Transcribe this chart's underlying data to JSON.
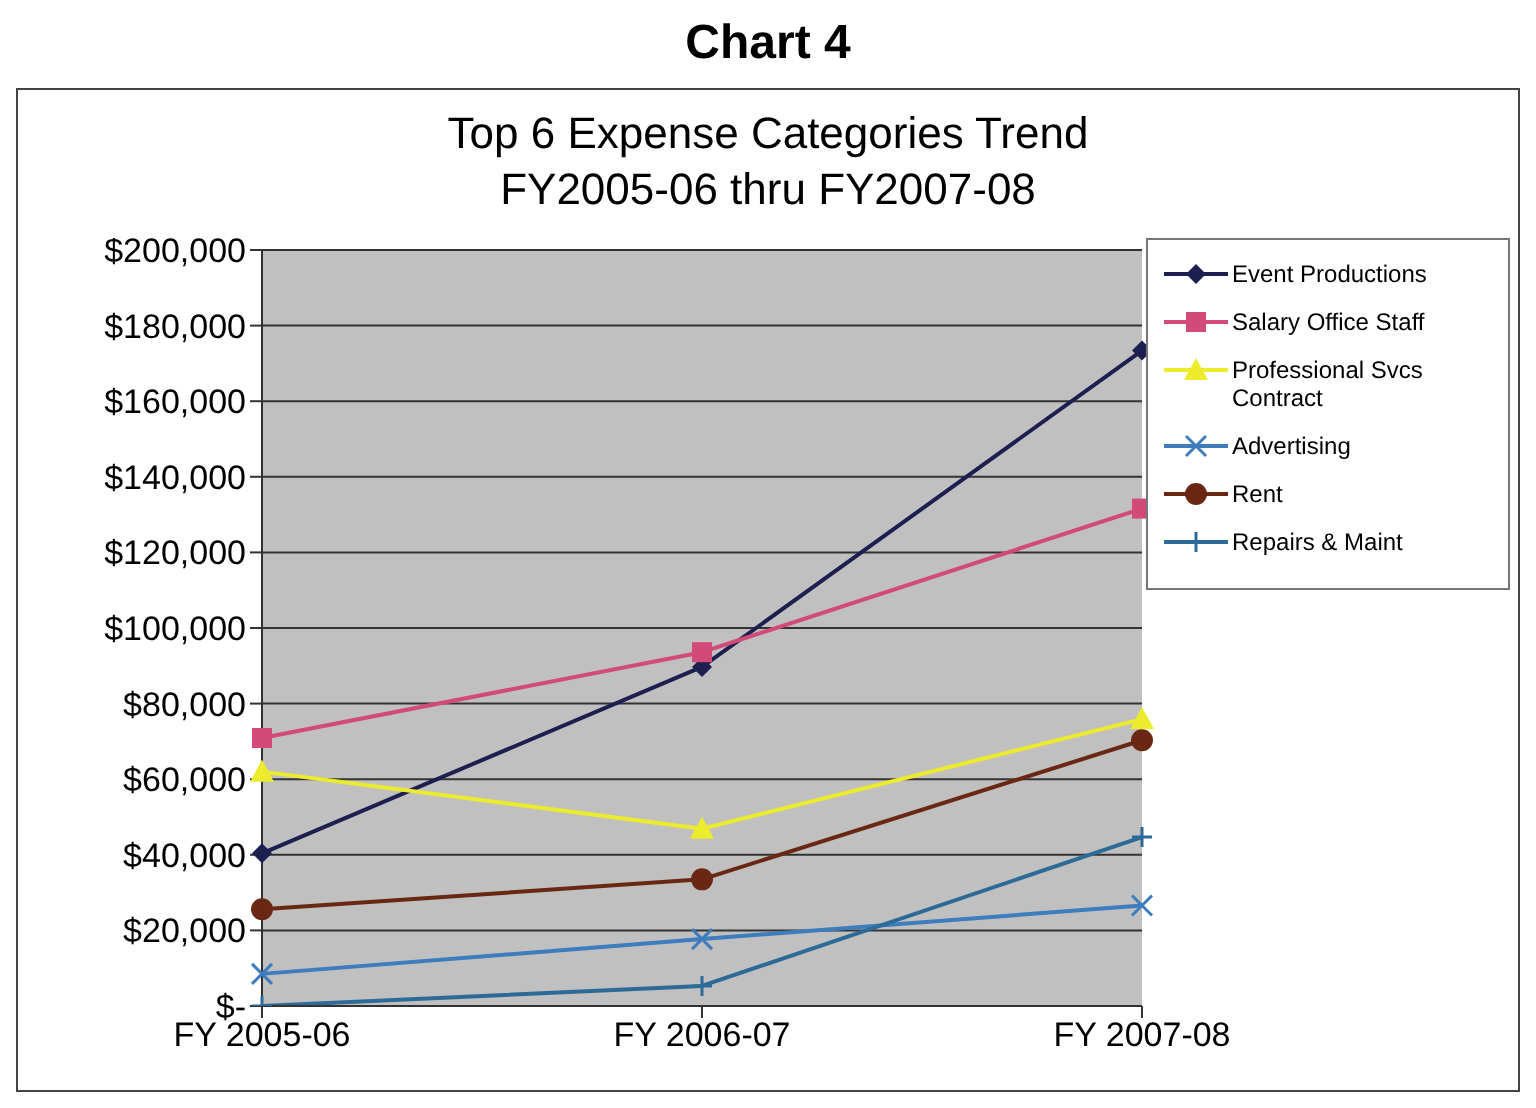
{
  "chart_data": {
    "type": "line",
    "title": "Chart 4",
    "subtitle": "Top 6 Expense Categories Trend\nFY2005-06 thru FY2007-08",
    "categories": [
      "FY 2005-06",
      "FY 2006-07",
      "FY 2007-08"
    ],
    "series": [
      {
        "name": "Event Productions",
        "color": "#1c1f4f",
        "marker": "diamond",
        "values": [
          40400,
          89700,
          173400
        ]
      },
      {
        "name": "Salary Office Staff",
        "color": "#d24a78",
        "marker": "square",
        "values": [
          70900,
          93600,
          131600
        ]
      },
      {
        "name": "Professional Svcs Contract",
        "color": "#ecec2c",
        "marker": "triangle",
        "values": [
          62000,
          46900,
          75900
        ]
      },
      {
        "name": "Advertising",
        "color": "#3d7cbd",
        "marker": "x",
        "values": [
          8500,
          17700,
          26600
        ]
      },
      {
        "name": "Rent",
        "color": "#6a2814",
        "marker": "circle",
        "values": [
          25600,
          33500,
          70300
        ]
      },
      {
        "name": "Repairs & Maint",
        "color": "#2c6a98",
        "marker": "cross",
        "values": [
          0,
          5300,
          44700
        ]
      }
    ],
    "ylim": [
      0,
      200000
    ],
    "yticks": [
      {
        "value": 0,
        "label": "$-"
      },
      {
        "value": 20000,
        "label": "$20,000"
      },
      {
        "value": 40000,
        "label": "$40,000"
      },
      {
        "value": 60000,
        "label": "$60,000"
      },
      {
        "value": 80000,
        "label": "$80,000"
      },
      {
        "value": 100000,
        "label": "$100,000"
      },
      {
        "value": 120000,
        "label": "$120,000"
      },
      {
        "value": 140000,
        "label": "$140,000"
      },
      {
        "value": 160000,
        "label": "$160,000"
      },
      {
        "value": 180000,
        "label": "$180,000"
      },
      {
        "value": 200000,
        "label": "$200,000"
      }
    ],
    "grid": "y",
    "legend": "right"
  }
}
